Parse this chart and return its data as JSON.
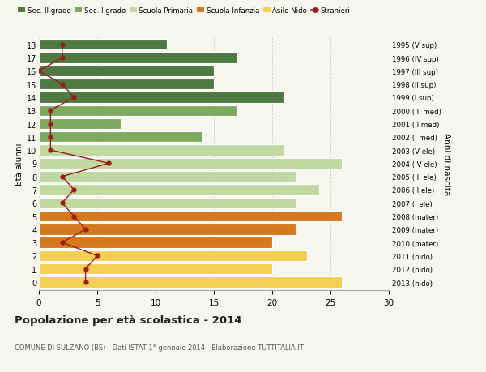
{
  "ages": [
    18,
    17,
    16,
    15,
    14,
    13,
    12,
    11,
    10,
    9,
    8,
    7,
    6,
    5,
    4,
    3,
    2,
    1,
    0
  ],
  "right_labels": [
    "1995 (V sup)",
    "1996 (IV sup)",
    "1997 (III sup)",
    "1998 (II sup)",
    "1999 (I sup)",
    "2000 (III med)",
    "2001 (II med)",
    "2002 (I med)",
    "2003 (V ele)",
    "2004 (IV ele)",
    "2005 (III ele)",
    "2006 (II ele)",
    "2007 (I ele)",
    "2008 (mater)",
    "2009 (mater)",
    "2010 (mater)",
    "2011 (nido)",
    "2012 (nido)",
    "2013 (nido)"
  ],
  "bar_values": [
    11,
    17,
    15,
    15,
    21,
    17,
    7,
    14,
    21,
    26,
    22,
    24,
    22,
    26,
    22,
    20,
    23,
    20,
    26
  ],
  "bar_colors": [
    "#4f7942",
    "#4f7942",
    "#4f7942",
    "#4f7942",
    "#4f7942",
    "#7daa5f",
    "#7daa5f",
    "#7daa5f",
    "#c0d9a0",
    "#c0d9a0",
    "#c0d9a0",
    "#c0d9a0",
    "#c0d9a0",
    "#d4791e",
    "#d4791e",
    "#d4791e",
    "#f5cf52",
    "#f5cf52",
    "#f5cf52"
  ],
  "stranieri_values": [
    2,
    2,
    0,
    2,
    3,
    1,
    1,
    1,
    1,
    6,
    2,
    3,
    2,
    3,
    4,
    2,
    5,
    4,
    4
  ],
  "stranieri_color": "#9b1a1a",
  "legend_items": [
    {
      "label": "Sec. II grado",
      "color": "#4f7942"
    },
    {
      "label": "Sec. I grado",
      "color": "#7daa5f"
    },
    {
      "label": "Scuola Primaria",
      "color": "#c0d9a0"
    },
    {
      "label": "Scuola Infanzia",
      "color": "#d4791e"
    },
    {
      "label": "Asilo Nido",
      "color": "#f5cf52"
    },
    {
      "label": "Stranieri",
      "color": "#9b1a1a"
    }
  ],
  "ylabel": "Età alunni",
  "right_ylabel": "Anni di nascita",
  "title": "Popolazione per età scolastica - 2014",
  "subtitle": "COMUNE DI SULZANO (BS) - Dati ISTAT 1° gennaio 2014 - Elaborazione TUTTITALIA.IT",
  "xlim": [
    0,
    30
  ],
  "xticks": [
    0,
    5,
    10,
    15,
    20,
    25,
    30
  ],
  "background_color": "#f7f7ef",
  "grid_color": "#d0d0c8"
}
